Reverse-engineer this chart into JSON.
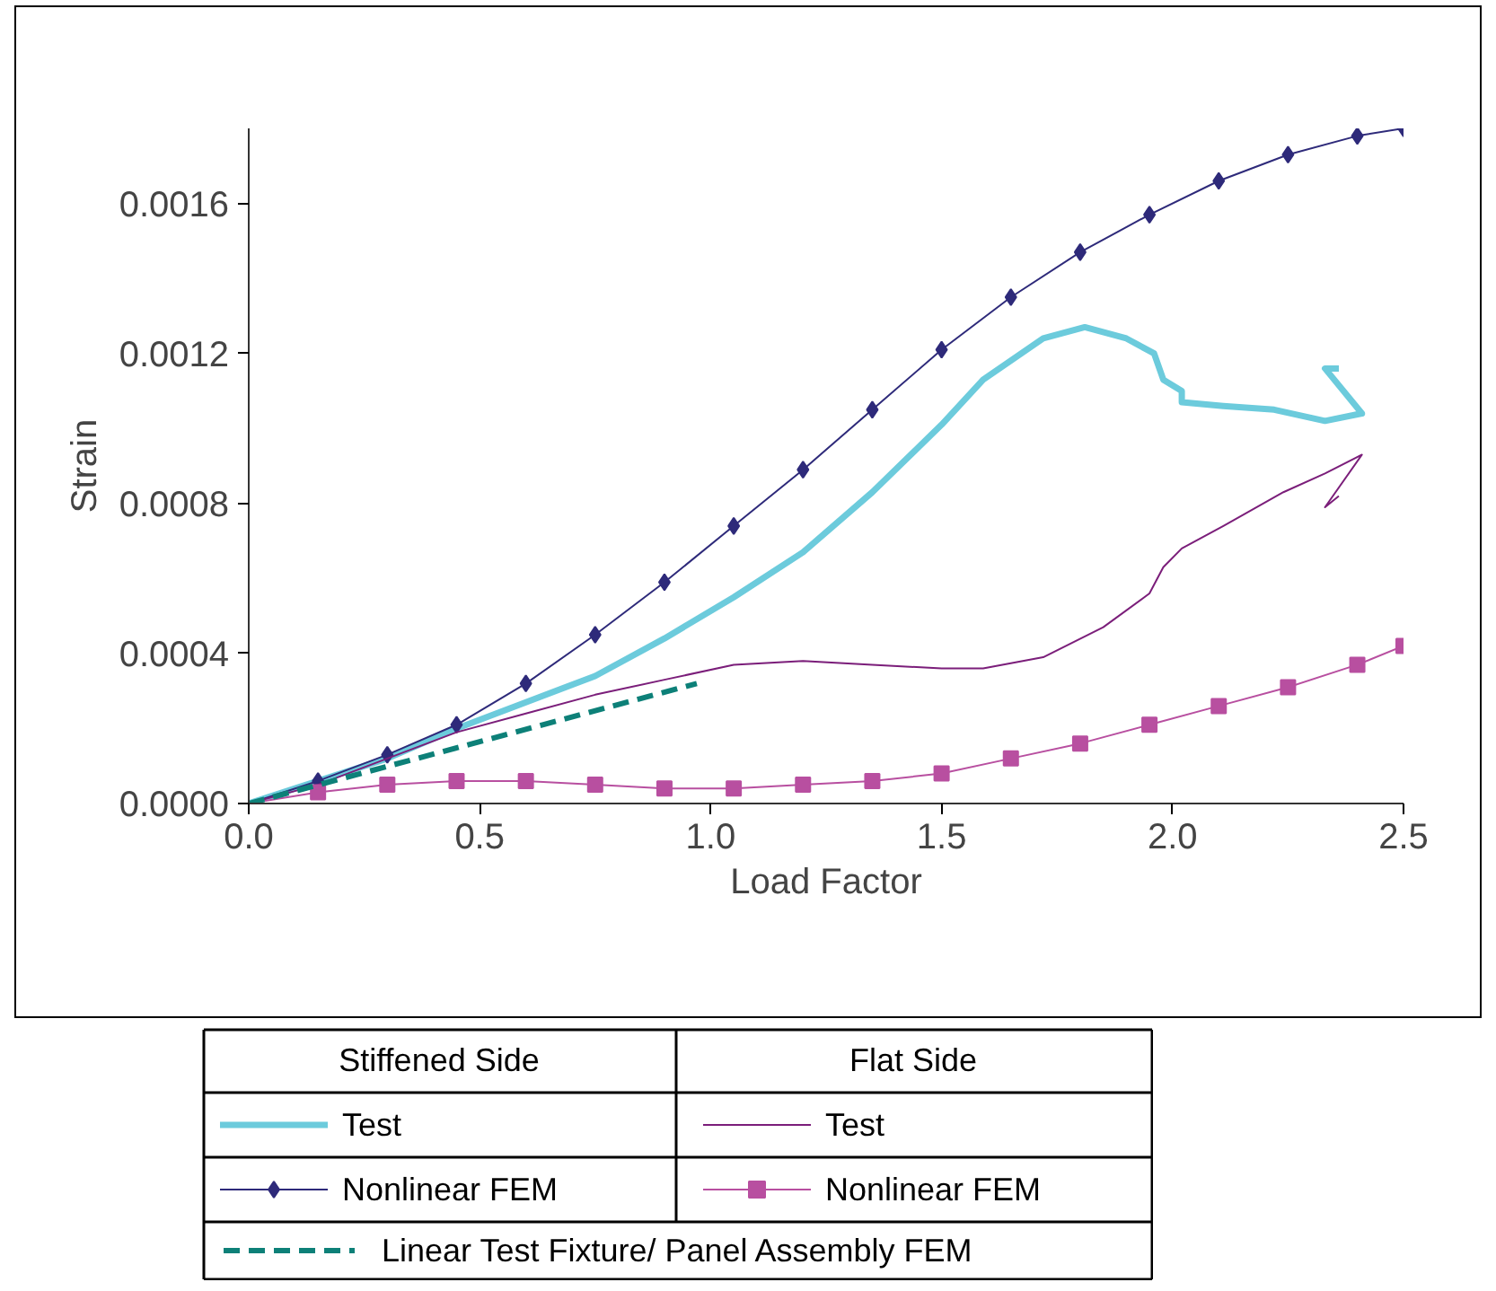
{
  "chart_data": {
    "type": "line",
    "xlabel": "Load Factor",
    "ylabel": "Strain",
    "xlim": [
      0,
      2.5
    ],
    "ylim": [
      0,
      0.0018
    ],
    "xticks": [
      {
        "value": 0,
        "label": "0.0"
      },
      {
        "value": 0.5,
        "label": "0.5"
      },
      {
        "value": 1,
        "label": "1.0"
      },
      {
        "value": 1.5,
        "label": "1.5"
      },
      {
        "value": 2,
        "label": "2.0"
      },
      {
        "value": 2.5,
        "label": "2.5"
      }
    ],
    "yticks": [
      {
        "value": 0,
        "label": "0.0000"
      },
      {
        "value": 0.0004,
        "label": "0.0004"
      },
      {
        "value": 0.0008,
        "label": "0.0008"
      },
      {
        "value": 0.0012,
        "label": "0.0012"
      },
      {
        "value": 0.0016,
        "label": "0.0016"
      }
    ],
    "grid": false,
    "legend": "bottom",
    "annotations": [
      "Stiffened Side",
      "Flat Side"
    ],
    "series": [
      {
        "name": "Test",
        "color": "#6ccbdc",
        "marker": "none",
        "line_style": "solid",
        "x": [
          0,
          0.15,
          0.3,
          0.45,
          0.6,
          0.75,
          0.9,
          1.05,
          1.2,
          1.35,
          1.5,
          1.59,
          1.72,
          1.81,
          1.9,
          1.96,
          1.98,
          2.02,
          2.02,
          2.11,
          2.22,
          2.33,
          2.41,
          2.33,
          2.36
        ],
        "values": [
          0,
          6e-05,
          0.00012,
          0.0002,
          0.00027,
          0.00034,
          0.00044,
          0.00055,
          0.00067,
          0.00083,
          0.00101,
          0.00113,
          0.00124,
          0.00127,
          0.00124,
          0.0012,
          0.00113,
          0.0011,
          0.00107,
          0.00106,
          0.00105,
          0.00102,
          0.00104,
          0.00116,
          0.00116
        ]
      },
      {
        "name": "Nonlinear FEM",
        "color": "#2e2a7a",
        "marker": "diamond",
        "line_style": "solid",
        "x": [
          0,
          0.15,
          0.3,
          0.45,
          0.6,
          0.75,
          0.9,
          1.05,
          1.2,
          1.35,
          1.5,
          1.65,
          1.8,
          1.95,
          2.1,
          2.25,
          2.4,
          2.5
        ],
        "values": [
          0,
          6e-05,
          0.00013,
          0.00021,
          0.00032,
          0.00045,
          0.00059,
          0.00074,
          0.00089,
          0.00105,
          0.00121,
          0.00135,
          0.00147,
          0.00157,
          0.00166,
          0.00173,
          0.00178,
          0.0018
        ]
      },
      {
        "name": "Test",
        "color": "#7b1e7a",
        "marker": "none",
        "line_style": "solid",
        "x": [
          0,
          0.15,
          0.3,
          0.45,
          0.6,
          0.75,
          0.9,
          1.05,
          1.2,
          1.35,
          1.5,
          1.59,
          1.72,
          1.85,
          1.95,
          1.98,
          2.02,
          2.11,
          2.24,
          2.33,
          2.41,
          2.33,
          2.36
        ],
        "values": [
          0,
          5e-05,
          0.00012,
          0.00019,
          0.00024,
          0.00029,
          0.00033,
          0.00037,
          0.00038,
          0.00037,
          0.00036,
          0.00036,
          0.00039,
          0.00047,
          0.00056,
          0.00063,
          0.00068,
          0.00074,
          0.00083,
          0.00088,
          0.00093,
          0.00079,
          0.00082
        ]
      },
      {
        "name": "Nonlinear FEM",
        "color": "#b84fa0",
        "marker": "square",
        "line_style": "solid",
        "x": [
          0,
          0.15,
          0.3,
          0.45,
          0.6,
          0.75,
          0.9,
          1.05,
          1.2,
          1.35,
          1.5,
          1.65,
          1.8,
          1.95,
          2.1,
          2.25,
          2.4,
          2.5
        ],
        "values": [
          0,
          3e-05,
          5e-05,
          6e-05,
          6e-05,
          5e-05,
          4e-05,
          4e-05,
          5e-05,
          6e-05,
          8e-05,
          0.00012,
          0.00016,
          0.00021,
          0.00026,
          0.00031,
          0.00037,
          0.00042
        ]
      },
      {
        "name": "Linear Test Fixture/ Panel Assembly FEM",
        "color": "#0d8078",
        "marker": "none",
        "line_style": "dashed",
        "x": [
          0,
          0.97
        ],
        "values": [
          0,
          0.00032
        ]
      }
    ]
  }
}
